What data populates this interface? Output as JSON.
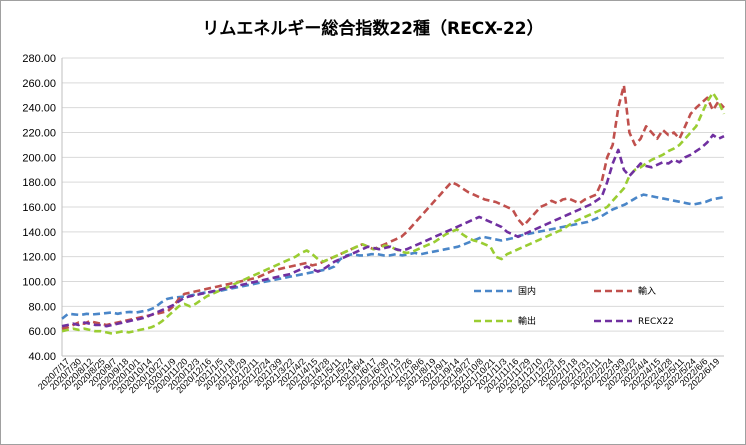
{
  "chart_title": "リムエネルギー総合指数22種（RECX-22）",
  "chart_data": {
    "type": "line",
    "title": "リムエネルギー総合指数22種（RECX-22）",
    "xlabel": "",
    "ylabel": "",
    "ylim": [
      40,
      280
    ],
    "yticks": [
      "40.00",
      "60.00",
      "80.00",
      "100.00",
      "120.00",
      "140.00",
      "160.00",
      "180.00",
      "200.00",
      "220.00",
      "240.00",
      "260.00",
      "280.00"
    ],
    "grid": true,
    "legend_position": "inside-lower-right",
    "x_tick_labels": [
      "2020/7/17",
      "2020/7/30",
      "2020/8/12",
      "2020/8/25",
      "2020/9/7",
      "2020/9/18",
      "2020/10/1",
      "2020/10/14",
      "2020/10/27",
      "2020/11/9",
      "2020/11/20",
      "2020/12/3",
      "2020/12/16",
      "2021/1/5",
      "2021/1/18",
      "2021/1/29",
      "2021/2/11",
      "2021/2/24",
      "2021/3/9",
      "2021/3/22",
      "2021/4/2",
      "2021/4/15",
      "2021/4/28",
      "2021/5/11",
      "2021/5/24",
      "2021/6/4",
      "2021/6/17",
      "2021/6/30",
      "2021/7/13",
      "2021/7/26",
      "2021/8/6",
      "2021/8/19",
      "2021/9/1",
      "2021/9/14",
      "2021/9/27",
      "2021/10/8",
      "2021/10/21",
      "2021/11/3",
      "2021/11/16",
      "2021/11/29",
      "2021/12/10",
      "2021/12/23",
      "2022/1/5",
      "2022/1/18",
      "2022/1/31",
      "2022/2/11",
      "2022/2/24",
      "2022/3/9",
      "2022/3/22",
      "2022/4/4",
      "2022/4/15",
      "2022/4/28",
      "2022/5/11",
      "2022/5/24",
      "2022/6/6",
      "2022/6/19"
    ],
    "series": [
      {
        "name": "国内",
        "color": "#4a86c8",
        "values": [
          70,
          74,
          73.5,
          73,
          74,
          73.5,
          74,
          74.5,
          75,
          74,
          75,
          75.5,
          75,
          76,
          77,
          79,
          83,
          86,
          87,
          87.5,
          88,
          89,
          90,
          91,
          91.5,
          92,
          93,
          94,
          95,
          96,
          97,
          98,
          99,
          100,
          101,
          102,
          103,
          104,
          105,
          106,
          107,
          108,
          109,
          110,
          112,
          118,
          121,
          122,
          121,
          121,
          122,
          122,
          121,
          121,
          122,
          121,
          122,
          123,
          122,
          123,
          124,
          125,
          126,
          127,
          128,
          130,
          132,
          134,
          136,
          135,
          134,
          133,
          134,
          135,
          137,
          138,
          139,
          140,
          141,
          142,
          143,
          144,
          145,
          146,
          147,
          148,
          150,
          152,
          155,
          158,
          160,
          162,
          165,
          168,
          170,
          169,
          168,
          167,
          166,
          165,
          164,
          163,
          162,
          163,
          164,
          166,
          167,
          168
        ]
      },
      {
        "name": "輸入",
        "color": "#c0504d",
        "values": [
          62,
          63,
          65,
          67,
          66,
          68,
          67,
          66,
          65,
          66,
          67,
          68,
          69,
          70,
          71,
          72,
          73,
          74,
          75,
          76,
          80,
          86,
          90,
          91,
          92,
          93,
          94,
          95,
          96,
          97,
          98,
          99,
          100,
          101,
          102,
          103,
          105,
          107,
          109,
          110,
          111,
          112,
          113,
          114,
          115,
          113,
          114,
          116,
          118,
          120,
          122,
          124,
          126,
          128,
          130,
          128,
          126,
          128,
          130,
          132,
          134,
          136,
          140,
          145,
          150,
          155,
          160,
          165,
          170,
          175,
          180,
          178,
          175,
          172,
          170,
          168,
          166,
          165,
          164,
          162,
          160,
          158,
          150,
          145,
          150,
          155,
          160,
          162,
          165,
          163,
          166,
          167,
          165,
          163,
          166,
          168,
          170,
          180,
          200,
          210,
          240,
          258,
          220,
          210,
          215,
          225,
          220,
          215,
          222,
          218,
          220,
          215,
          225,
          235,
          240,
          244,
          248,
          238,
          245,
          240
        ]
      },
      {
        "name": "輸出",
        "color": "#9acd32",
        "values": [
          60,
          61,
          62,
          61,
          62,
          61,
          60,
          60,
          59,
          58,
          59,
          60,
          59,
          60,
          61,
          62,
          63,
          65,
          68,
          72,
          76,
          80,
          82,
          80,
          82,
          85,
          88,
          90,
          92,
          94,
          96,
          98,
          100,
          102,
          104,
          106,
          108,
          110,
          112,
          114,
          116,
          118,
          120,
          123,
          125,
          122,
          118,
          116,
          118,
          120,
          122,
          124,
          126,
          128,
          130,
          128,
          126,
          127,
          129,
          128,
          126,
          124,
          123,
          124,
          126,
          128,
          130,
          132,
          135,
          138,
          140,
          142,
          138,
          135,
          133,
          132,
          130,
          128,
          120,
          118,
          122,
          124,
          126,
          128,
          130,
          132,
          134,
          136,
          138,
          140,
          142,
          145,
          148,
          150,
          152,
          154,
          156,
          158,
          160,
          165,
          170,
          175,
          185,
          190,
          192,
          195,
          198,
          200,
          202,
          205,
          207,
          210,
          215,
          220,
          225,
          235,
          245,
          252,
          245,
          235
        ]
      },
      {
        "name": "RECX22",
        "color": "#7030a0",
        "values": [
          64,
          65,
          66,
          65,
          67,
          66,
          65,
          65,
          64,
          65,
          66,
          67,
          68,
          69,
          70,
          71,
          73,
          75,
          77,
          79,
          81,
          84,
          87,
          88,
          89,
          90,
          91,
          92,
          93,
          94,
          95,
          96,
          97,
          98,
          99,
          100,
          101,
          102,
          103,
          104,
          105,
          106,
          108,
          110,
          112,
          110,
          108,
          110,
          113,
          116,
          118,
          120,
          122,
          124,
          126,
          128,
          127,
          126,
          127,
          128,
          126,
          125,
          126,
          128,
          130,
          132,
          134,
          136,
          138,
          140,
          142,
          144,
          146,
          148,
          150,
          152,
          150,
          148,
          146,
          144,
          140,
          138,
          136,
          138,
          140,
          142,
          144,
          146,
          148,
          150,
          152,
          154,
          156,
          158,
          160,
          162,
          165,
          168,
          180,
          195,
          206,
          190,
          185,
          190,
          195,
          193,
          192,
          194,
          196,
          195,
          198,
          196,
          200,
          202,
          205,
          208,
          212,
          218,
          215,
          217
        ]
      }
    ]
  },
  "legend": {
    "items": [
      {
        "name": "国内",
        "color": "#4a86c8"
      },
      {
        "name": "輸入",
        "color": "#c0504d"
      },
      {
        "name": "輸出",
        "color": "#9acd32"
      },
      {
        "name": "RECX22",
        "color": "#7030a0"
      }
    ]
  }
}
